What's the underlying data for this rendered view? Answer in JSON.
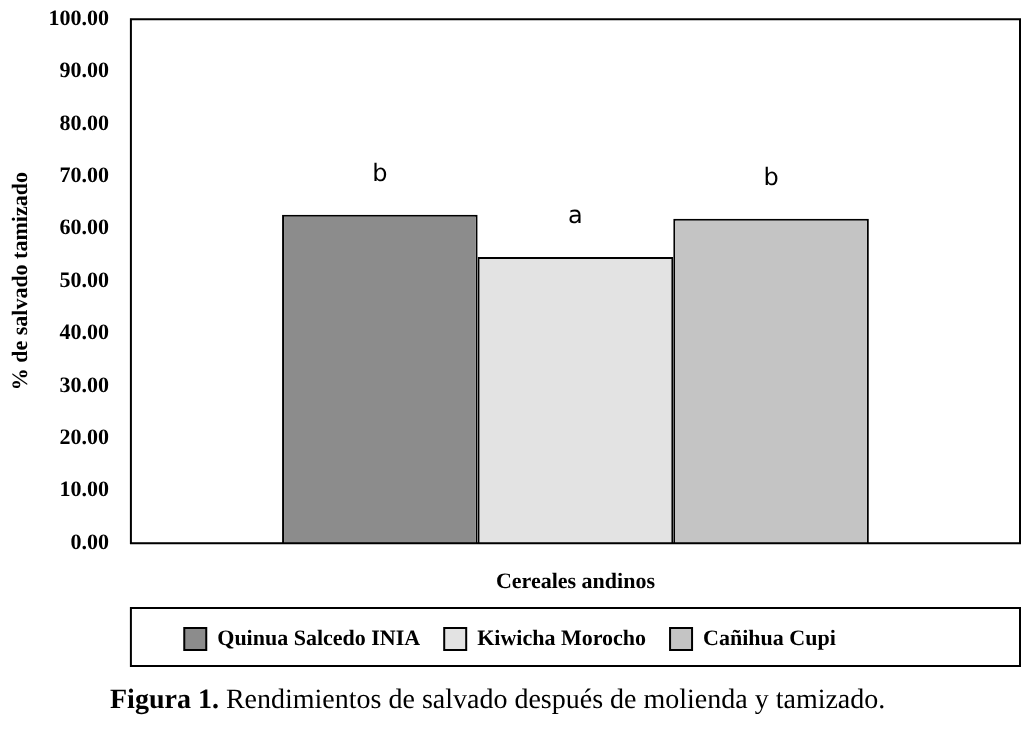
{
  "chart_data": {
    "type": "bar",
    "title": "Figura 1. Rendimientos de salvado después de molienda y tamizado.",
    "xlabel": "Cereales andinos",
    "ylabel": "% de salvado tamizado",
    "categories": [
      null
    ],
    "series": [
      {
        "name": "Quinua Salcedo INIA",
        "color": "#8c8c8c",
        "values": [
          62.7
        ],
        "value_labels": [
          "b"
        ]
      },
      {
        "name": "Kiwicha Morocho",
        "color": "#e3e3e3",
        "values": [
          54.6
        ],
        "value_labels": [
          "a"
        ]
      },
      {
        "name": "Cañihua Cupi",
        "color": "#c4c4c4",
        "values": [
          61.9
        ],
        "value_labels": [
          "b"
        ]
      }
    ],
    "ylim": [
      0,
      100
    ],
    "yticks": [
      {
        "value": 0,
        "label": "0.00"
      },
      {
        "value": 10,
        "label": "10.00"
      },
      {
        "value": 20,
        "label": "20.00"
      },
      {
        "value": 30,
        "label": "30.00"
      },
      {
        "value": 40,
        "label": "40.00"
      },
      {
        "value": 50,
        "label": "50.00"
      },
      {
        "value": 60,
        "label": "60.00"
      },
      {
        "value": 70,
        "label": "70.00"
      },
      {
        "value": 80,
        "label": "80.00"
      },
      {
        "value": 90,
        "label": "90.00"
      },
      {
        "value": 100,
        "label": "100.00"
      }
    ],
    "grid": false,
    "legend": "bottom"
  }
}
